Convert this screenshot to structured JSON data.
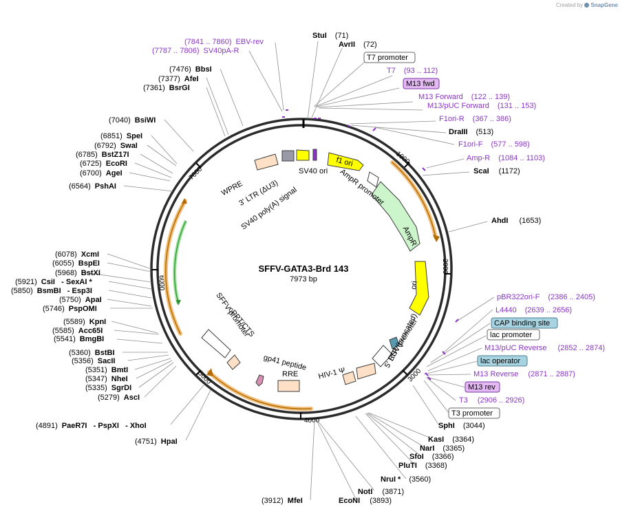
{
  "credit": {
    "prefix": "Created by",
    "brand": "SnapGene"
  },
  "plasmid": {
    "name": "SFFV-GATA3-Brd 143",
    "length_label": "7973 bp",
    "length": 7973
  },
  "tick_labels": [
    "1000",
    "2000",
    "3000",
    "4000",
    "5000",
    "6000",
    "7000"
  ],
  "colors": {
    "backbone": "#2b2b2b",
    "feature_outline": "#3c3c3c",
    "orange_arc": "#e69b1f",
    "primer": "#8a34c4",
    "green_arc": "#4db34d"
  },
  "sites": [
    {
      "name": "StuI",
      "pos": "(71)"
    },
    {
      "name": "AvrII",
      "pos": "(72)"
    },
    {
      "name": "DraIII",
      "pos": "(513)"
    },
    {
      "name": "ScaI",
      "pos": "(1172)"
    },
    {
      "name": "AhdI",
      "pos": "(1653)"
    },
    {
      "name": "SphI",
      "pos": "(3044)"
    },
    {
      "name": "KasI",
      "pos": "(3364)"
    },
    {
      "name": "NarI",
      "pos": "(3365)"
    },
    {
      "name": "SfoI",
      "pos": "(3366)"
    },
    {
      "name": "PluTI",
      "pos": "(3368)"
    },
    {
      "name": "NruI *",
      "pos": "(3560)"
    },
    {
      "name": "NotI",
      "pos": "(3871)"
    },
    {
      "name": "EcoNI",
      "pos": "(3893)"
    },
    {
      "name": "MfeI",
      "pos": "(3912)"
    },
    {
      "name": "HpaI",
      "pos": "(4751)"
    },
    {
      "name": "PaeR7I   - PspXI   - XhoI",
      "pos": "(4891)"
    },
    {
      "name": "AscI",
      "pos": "(5279)"
    },
    {
      "name": "SgrDI",
      "pos": "(5335)"
    },
    {
      "name": "NheI",
      "pos": "(5347)"
    },
    {
      "name": "BmtI",
      "pos": "(5351)"
    },
    {
      "name": "SacII",
      "pos": "(5356)"
    },
    {
      "name": "BstBI",
      "pos": "(5360)"
    },
    {
      "name": "BmgBI",
      "pos": "(5541)"
    },
    {
      "name": "Acc65I",
      "pos": "(5585)"
    },
    {
      "name": "KpnI",
      "pos": "(5589)"
    },
    {
      "name": "PspOMI",
      "pos": "(5746)"
    },
    {
      "name": "ApaI",
      "pos": "(5750)"
    },
    {
      "name": "BsmBI   - Esp3I",
      "pos": "(5850)"
    },
    {
      "name": "CsiI   - SexAI *",
      "pos": "(5921)"
    },
    {
      "name": "BstXI",
      "pos": "(5968)"
    },
    {
      "name": "BspEI",
      "pos": "(6055)"
    },
    {
      "name": "XcmI",
      "pos": "(6078)"
    },
    {
      "name": "PshAI",
      "pos": "(6564)"
    },
    {
      "name": "AgeI",
      "pos": "(6700)"
    },
    {
      "name": "EcoRI",
      "pos": "(6725)"
    },
    {
      "name": "BstZ17I",
      "pos": "(6785)"
    },
    {
      "name": "SwaI",
      "pos": "(6792)"
    },
    {
      "name": "SpeI",
      "pos": "(6851)"
    },
    {
      "name": "BsiWI",
      "pos": "(7040)"
    },
    {
      "name": "BsrGI",
      "pos": "(7361)"
    },
    {
      "name": "AfeI",
      "pos": "(7377)"
    },
    {
      "name": "BbsI",
      "pos": "(7476)"
    }
  ],
  "primers": [
    {
      "name": "EBV-rev",
      "range": "(7841 .. 7860)"
    },
    {
      "name": "SV40pA-R",
      "range": "(7787 .. 7806)"
    },
    {
      "name": "T7",
      "range": "(93 .. 112)"
    },
    {
      "name": "M13 Forward",
      "range": "(122 .. 139)"
    },
    {
      "name": "M13/pUC Forward",
      "range": "(131 .. 153)"
    },
    {
      "name": "F1ori-R",
      "range": "(367 .. 386)"
    },
    {
      "name": "F1ori-F",
      "range": "(577 .. 598)"
    },
    {
      "name": "Amp-R",
      "range": "(1084 .. 1103)"
    },
    {
      "name": "pBR322ori-F",
      "range": "(2386 .. 2405)"
    },
    {
      "name": "L4440",
      "range": "(2639 .. 2656)"
    },
    {
      "name": "M13/pUC Reverse",
      "range": "(2852 .. 2874)"
    },
    {
      "name": "M13 Reverse",
      "range": "(2871 .. 2887)"
    },
    {
      "name": "T3",
      "range": "(2906 .. 2926)"
    }
  ],
  "boxed_labels": [
    "T7 promoter",
    "M13 fwd",
    "CAP binding site",
    "lac promoter",
    "lac operator",
    "M13 rev",
    "T3 promoter"
  ],
  "features": [
    "f1 ori",
    "AmpR promoter",
    "AmpR",
    "ori",
    "SV40 ori",
    "SV40 poly(A) signal",
    "3' LTR (ΔU3)",
    "WPRE",
    "cPPT/CTS",
    "SFFV promoter",
    "gp41 peptide",
    "RRE",
    "HIV-1 Ψ",
    "5' LTR (truncated)",
    "RSV promoter"
  ]
}
